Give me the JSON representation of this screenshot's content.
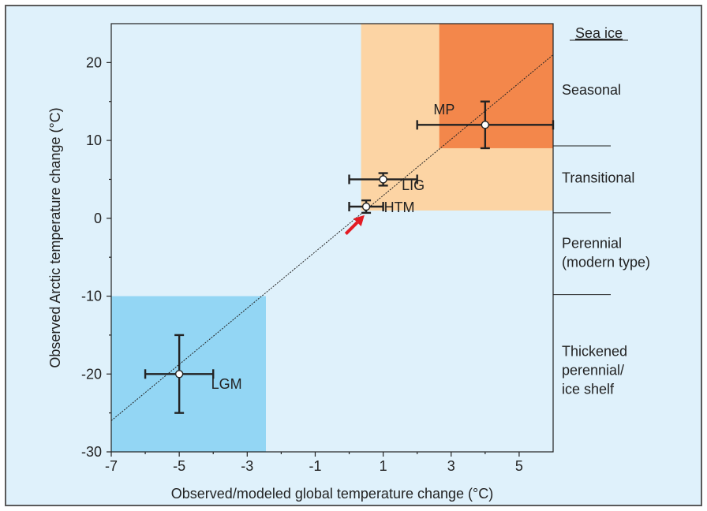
{
  "chart_data": {
    "type": "scatter",
    "xlabel": "Observed/modeled global temperature change (°C)",
    "ylabel": "Observed Arctic temperature change (°C)",
    "xlim": [
      -7,
      6
    ],
    "ylim": [
      -30,
      25
    ],
    "xticks": [
      -7,
      -5,
      -3,
      -1,
      1,
      3,
      5
    ],
    "yticks": [
      -30,
      -20,
      -10,
      0,
      10,
      20
    ],
    "grid": false,
    "points": [
      {
        "label": "MP",
        "x": 4.0,
        "y": 12.0,
        "x_err": 2.0,
        "y_err": 3.0
      },
      {
        "label": "LIG",
        "x": 1.0,
        "y": 5.0,
        "x_err": 1.0,
        "y_err": 0.8
      },
      {
        "label": "HTM",
        "x": 0.5,
        "y": 1.5,
        "x_err": 0.5,
        "y_err": 0.8
      },
      {
        "label": "LGM",
        "x": -5.0,
        "y": -20.0,
        "x_err": 1.0,
        "y_err": 5.0
      }
    ],
    "fit_line": {
      "x": [
        -7,
        6
      ],
      "y": [
        -26,
        21
      ]
    },
    "shaded_regions": [
      {
        "name": "warm",
        "x": [
          0.35,
          6
        ],
        "y": [
          1,
          25
        ],
        "color": "#fcd4a4"
      },
      {
        "name": "seasonal",
        "x": [
          2.65,
          6
        ],
        "y": [
          9,
          25
        ],
        "color": "#f3874b"
      },
      {
        "name": "cold",
        "x": [
          -7,
          -2.45
        ],
        "y": [
          -30,
          -10
        ],
        "color": "#93d6f4"
      }
    ],
    "arrow": {
      "from": [
        -0.1,
        -2.0
      ],
      "to": [
        0.45,
        0.4
      ],
      "color": "#e31b23"
    },
    "sea_ice": {
      "heading": "Sea ice",
      "zones": [
        {
          "lines": [
            "Seasonal"
          ],
          "y_center": 16.5
        },
        {
          "lines": [
            "Transitional"
          ],
          "y_center": 5.2
        },
        {
          "lines": [
            "Perennial",
            "(modern type)"
          ],
          "y_center": -4.4
        },
        {
          "lines": [
            "Thickened",
            "perennial/",
            "ice shelf"
          ],
          "y_center": -19.5
        }
      ],
      "boundaries_y": [
        9.3,
        0.7,
        -9.8
      ]
    }
  },
  "colors": {
    "background": "#dff1fb",
    "frame": "#5a5a5a",
    "ink": "#222222"
  }
}
